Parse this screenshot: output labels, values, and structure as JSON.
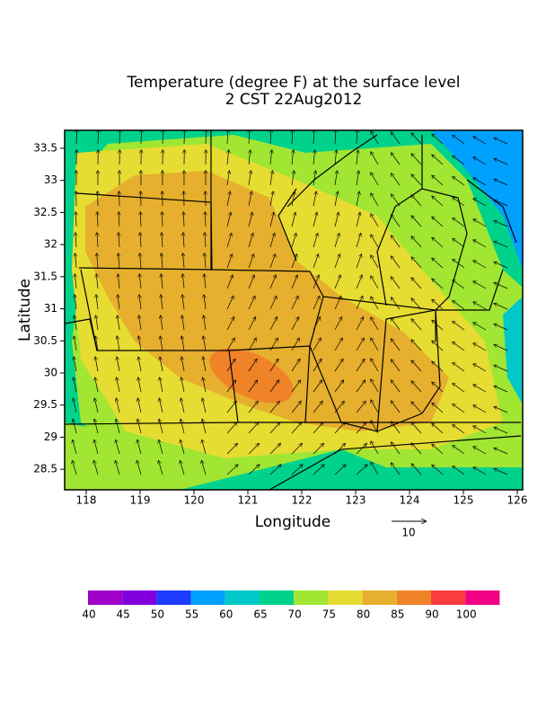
{
  "title": [
    "Temperature (degree F) at the surface level",
    "2 CST 22Aug2012"
  ],
  "x_axis": {
    "label": "Longitude",
    "ticks": [
      118,
      119,
      120,
      121,
      122,
      123,
      124,
      125,
      126
    ]
  },
  "y_axis": {
    "label": "Latitude",
    "ticks": [
      28.5,
      29,
      29.5,
      30,
      30.5,
      31,
      31.5,
      32,
      32.5,
      33,
      33.5
    ]
  },
  "colorbar": {
    "colors": [
      "#a000c8",
      "#8200dc",
      "#1e3cff",
      "#00a0ff",
      "#00c8c8",
      "#00d28c",
      "#a0e632",
      "#e6dc32",
      "#e6af2d",
      "#f08228",
      "#fa3c3c",
      "#f00082"
    ],
    "labels": [
      40,
      45,
      50,
      55,
      60,
      65,
      70,
      75,
      80,
      85,
      90,
      100
    ]
  },
  "vector_reference": "10"
}
